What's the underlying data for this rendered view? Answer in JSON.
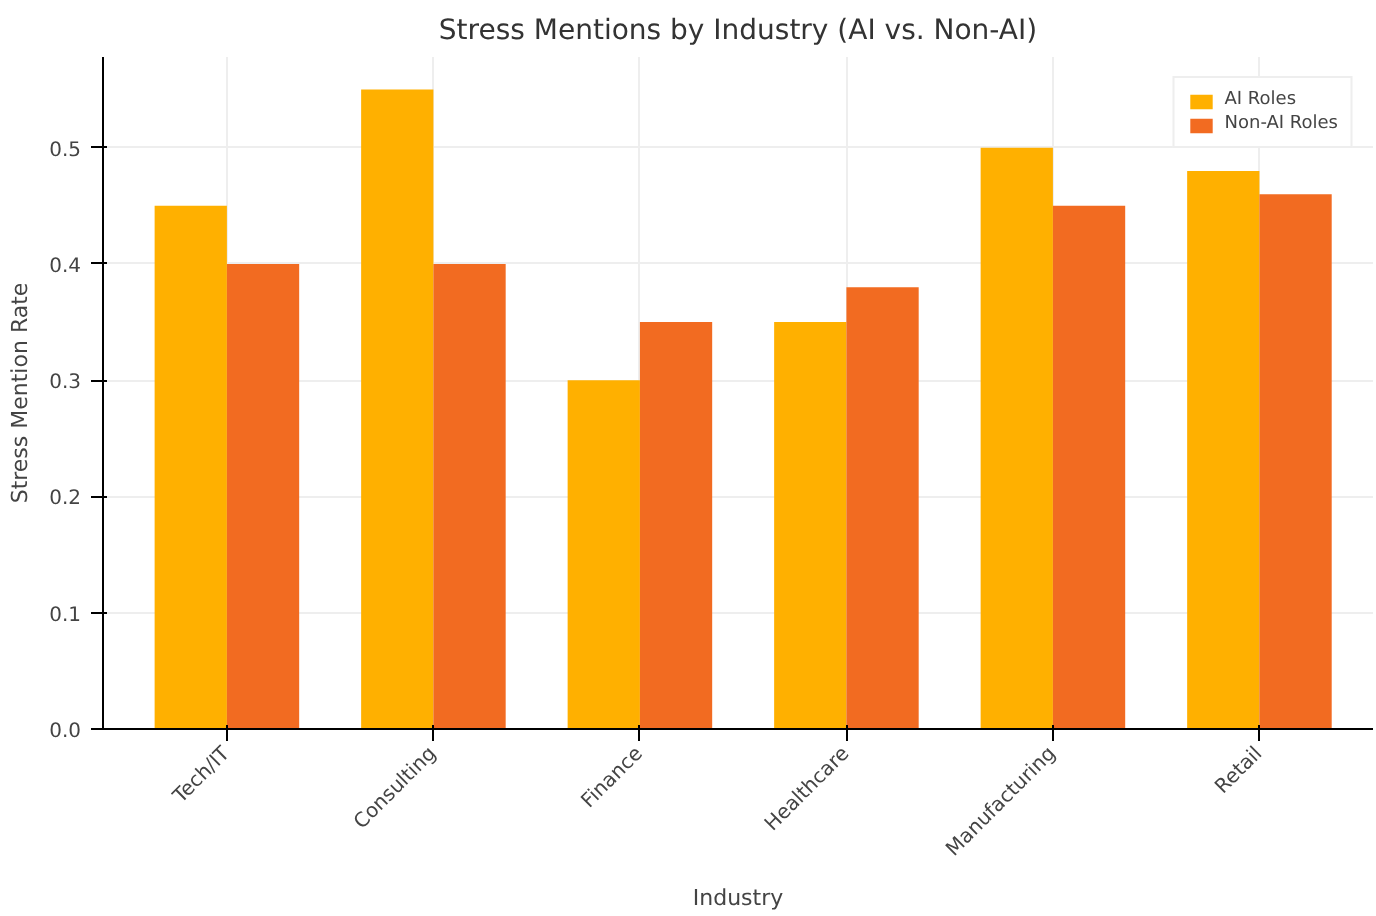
{
  "chart_data": {
    "type": "bar",
    "title": "Stress Mentions by Industry (AI vs. Non-AI)",
    "xlabel": "Industry",
    "ylabel": "Stress Mention Rate",
    "categories": [
      "Tech/IT",
      "Consulting",
      "Finance",
      "Healthcare",
      "Manufacturing",
      "Retail"
    ],
    "series": [
      {
        "name": "AI Roles",
        "color": "#ffb000",
        "values": [
          0.45,
          0.55,
          0.3,
          0.35,
          0.5,
          0.48
        ]
      },
      {
        "name": "Non-AI Roles",
        "color": "#f26b21",
        "values": [
          0.4,
          0.4,
          0.35,
          0.38,
          0.45,
          0.46
        ]
      }
    ],
    "ylim": [
      0,
      0.578
    ],
    "yticks": [
      {
        "value": 0,
        "label": "0.0"
      },
      0.1,
      0.2,
      0.3,
      0.4,
      0.5
    ],
    "grid": true,
    "legend": "top right"
  }
}
